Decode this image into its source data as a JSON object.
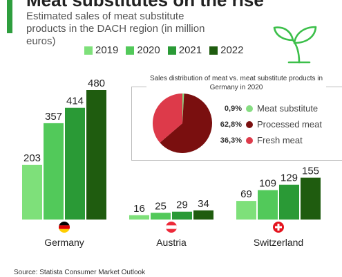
{
  "header": {
    "title": "Meat substitutes on the rise",
    "subtitle": "Estimated sales of meat substitute products in the DACH region (in million euros)"
  },
  "legend": [
    {
      "label": "2019",
      "color": "#7ee07a"
    },
    {
      "label": "2020",
      "color": "#52c95a"
    },
    {
      "label": "2021",
      "color": "#2a9a36"
    },
    {
      "label": "2022",
      "color": "#1f5c0f"
    }
  ],
  "source": "Source: Statista Consumer Market Outlook",
  "icons": {
    "leaf": "leaf-sprout-icon"
  },
  "chart_data": [
    {
      "type": "bar",
      "categories": [
        "Germany",
        "Austria",
        "Switzerland"
      ],
      "category_icons": [
        "germany-flag-icon",
        "austria-flag-icon",
        "switzerland-flag-icon"
      ],
      "series": [
        {
          "name": "2019",
          "values": [
            203,
            16,
            69
          ],
          "color": "#7ee07a"
        },
        {
          "name": "2020",
          "values": [
            357,
            25,
            109
          ],
          "color": "#52c95a"
        },
        {
          "name": "2021",
          "values": [
            414,
            29,
            129
          ],
          "color": "#2a9a36"
        },
        {
          "name": "2022",
          "values": [
            480,
            34,
            155
          ],
          "color": "#1f5c0f"
        }
      ],
      "title": "Estimated sales of meat substitute products in the DACH region (in million euros)",
      "ylim": [
        0,
        480
      ],
      "grid": false,
      "legend_position": "top"
    },
    {
      "type": "pie",
      "title": "Sales distribution of meat vs. meat substitute products in Germany in 2020",
      "slices": [
        {
          "label": "Meat substitute",
          "value": 0.9,
          "value_label": "0,9%",
          "color": "#86dd82"
        },
        {
          "label": "Processed meat",
          "value": 62.8,
          "value_label": "62,8%",
          "color": "#7a0f0f"
        },
        {
          "label": "Fresh meat",
          "value": 36.3,
          "value_label": "36,3%",
          "color": "#dd3a4a"
        }
      ]
    }
  ]
}
